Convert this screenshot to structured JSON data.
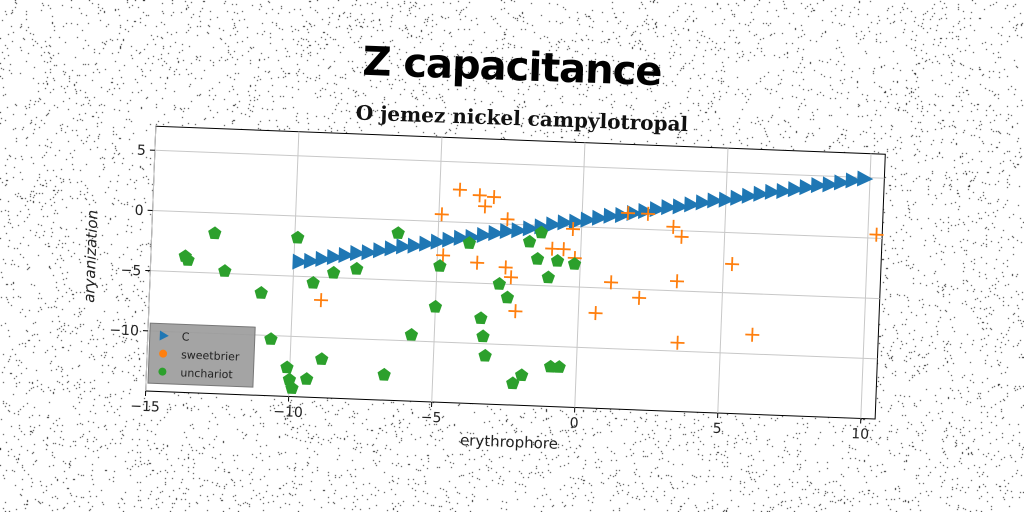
{
  "chart_data": {
    "type": "scatter",
    "title": "Z capacitance",
    "subtitle": "O jemez nickel campylotropal",
    "xlabel": "erythrophore",
    "ylabel": "aryanization",
    "xlim": [
      -15,
      10.5
    ],
    "ylim": [
      -15,
      7
    ],
    "xticks": [
      -15,
      -10,
      -5,
      0,
      5,
      10
    ],
    "yticks": [
      -10,
      -5,
      0,
      5
    ],
    "grid": true,
    "legend_position": "bottom-left",
    "series": [
      {
        "name": "C",
        "marker": "triangle-right",
        "color": "#1f77b4",
        "points": [
          [
            -9.8,
            -3.8
          ],
          [
            -9.4,
            -3.7
          ],
          [
            -9.0,
            -3.5
          ],
          [
            -8.6,
            -3.3
          ],
          [
            -8.2,
            -3.1
          ],
          [
            -7.8,
            -2.9
          ],
          [
            -7.4,
            -2.8
          ],
          [
            -7.0,
            -2.6
          ],
          [
            -6.6,
            -2.4
          ],
          [
            -6.2,
            -2.2
          ],
          [
            -5.8,
            -2.1
          ],
          [
            -5.4,
            -1.9
          ],
          [
            -5.0,
            -1.7
          ],
          [
            -4.6,
            -1.5
          ],
          [
            -4.2,
            -1.3
          ],
          [
            -3.8,
            -1.2
          ],
          [
            -3.4,
            -1.0
          ],
          [
            -3.0,
            -0.8
          ],
          [
            -2.6,
            -0.6
          ],
          [
            -2.2,
            -0.5
          ],
          [
            -1.8,
            -0.3
          ],
          [
            -1.4,
            -0.1
          ],
          [
            -1.0,
            0.1
          ],
          [
            -0.6,
            0.3
          ],
          [
            -0.2,
            0.4
          ],
          [
            0.2,
            0.6
          ],
          [
            0.6,
            0.8
          ],
          [
            1.0,
            1.0
          ],
          [
            1.4,
            1.1
          ],
          [
            1.8,
            1.3
          ],
          [
            2.2,
            1.5
          ],
          [
            2.6,
            1.7
          ],
          [
            3.0,
            1.9
          ],
          [
            3.4,
            2.0
          ],
          [
            3.8,
            2.2
          ],
          [
            4.2,
            2.4
          ],
          [
            4.6,
            2.6
          ],
          [
            5.0,
            2.7
          ],
          [
            5.4,
            2.9
          ],
          [
            5.8,
            3.1
          ],
          [
            6.2,
            3.3
          ],
          [
            6.6,
            3.5
          ],
          [
            7.0,
            3.6
          ],
          [
            7.4,
            3.8
          ],
          [
            7.8,
            4.0
          ],
          [
            8.2,
            4.2
          ],
          [
            8.6,
            4.3
          ],
          [
            9.0,
            4.5
          ],
          [
            9.4,
            4.7
          ],
          [
            9.8,
            4.9
          ]
        ]
      },
      {
        "name": "sweetbrier",
        "marker": "plus",
        "color": "#ff7f0e",
        "points": [
          [
            -4.3,
            2.7
          ],
          [
            -3.6,
            2.3
          ],
          [
            -3.1,
            2.2
          ],
          [
            -3.4,
            1.4
          ],
          [
            -4.9,
            0.6
          ],
          [
            -2.6,
            0.4
          ],
          [
            -3.6,
            -3.3
          ],
          [
            -4.8,
            -2.8
          ],
          [
            -2.6,
            -3.6
          ],
          [
            -2.4,
            -4.4
          ],
          [
            -0.6,
            -1.9
          ],
          [
            -0.2,
            -2.6
          ],
          [
            -1.0,
            -1.9
          ],
          [
            -0.3,
            -0.2
          ],
          [
            1.1,
            -4.5
          ],
          [
            0.6,
            -7.1
          ],
          [
            -2.2,
            -7.2
          ],
          [
            2.1,
            -5.7
          ],
          [
            3.4,
            -4.2
          ],
          [
            3.5,
            -9.3
          ],
          [
            6.1,
            -8.4
          ],
          [
            5.3,
            -2.6
          ],
          [
            10.3,
            0.3
          ],
          [
            1.6,
            1.3
          ],
          [
            2.3,
            1.3
          ],
          [
            3.2,
            0.3
          ],
          [
            3.5,
            -0.5
          ],
          [
            -9.0,
            -6.9
          ]
        ]
      },
      {
        "name": "unchariot",
        "marker": "pentagon",
        "color": "#2ca02c",
        "points": [
          [
            -13.8,
            -3.7
          ],
          [
            -13.7,
            -4.0
          ],
          [
            -12.8,
            -1.7
          ],
          [
            -12.4,
            -4.8
          ],
          [
            -11.1,
            -6.5
          ],
          [
            -10.7,
            -10.3
          ],
          [
            -9.9,
            -1.8
          ],
          [
            -9.3,
            -5.5
          ],
          [
            -8.6,
            -4.6
          ],
          [
            -7.8,
            -4.2
          ],
          [
            -6.4,
            -1.1
          ],
          [
            -10.1,
            -12.6
          ],
          [
            -9.9,
            -14.3
          ],
          [
            -10.0,
            -13.6
          ],
          [
            -9.4,
            -13.5
          ],
          [
            -8.9,
            -11.8
          ],
          [
            -5.8,
            -9.5
          ],
          [
            -5.0,
            -7.1
          ],
          [
            -4.9,
            -3.7
          ],
          [
            -3.9,
            -1.7
          ],
          [
            -3.4,
            -7.9
          ],
          [
            -3.3,
            -9.4
          ],
          [
            -3.2,
            -11.0
          ],
          [
            -2.8,
            -5.0
          ],
          [
            -2.5,
            -6.1
          ],
          [
            -1.8,
            -1.4
          ],
          [
            -1.1,
            -4.3
          ],
          [
            -0.8,
            -2.9
          ],
          [
            -0.2,
            -3.1
          ],
          [
            -1.4,
            -0.6
          ],
          [
            -6.7,
            -12.9
          ],
          [
            -2.2,
            -13.2
          ],
          [
            -1.9,
            -12.5
          ],
          [
            -0.9,
            -11.7
          ],
          [
            -0.6,
            -11.7
          ],
          [
            -1.5,
            -2.8
          ]
        ]
      }
    ]
  }
}
